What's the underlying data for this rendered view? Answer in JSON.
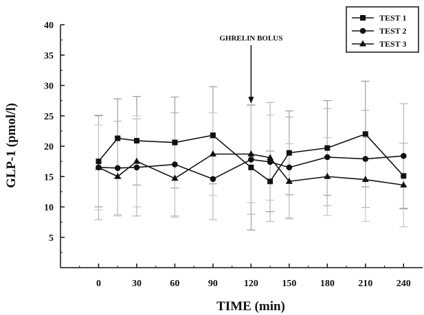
{
  "chart_data": {
    "type": "line",
    "xlabel": "TIME (min)",
    "ylabel": "GLP-1 (pmol/l)",
    "xlim": [
      -30,
      255
    ],
    "ylim": [
      0,
      40
    ],
    "xticks": [
      0,
      30,
      60,
      90,
      120,
      150,
      180,
      210,
      240
    ],
    "yticks": [
      5,
      10,
      15,
      20,
      25,
      30,
      35,
      40
    ],
    "grid": false,
    "legend_position": "top-right",
    "annotation": {
      "text": "GHRELIN BOLUS",
      "x": 120,
      "arrow_to_y": 27
    },
    "series": [
      {
        "name": "TEST 1",
        "marker": "square",
        "x": [
          0,
          15,
          30,
          60,
          90,
          120,
          135,
          150,
          180,
          210,
          240
        ],
        "values": [
          17.5,
          21.3,
          20.9,
          20.6,
          21.8,
          16.5,
          14.2,
          18.9,
          19.7,
          22.0,
          15.1
        ],
        "errors": [
          7.5,
          6.5,
          7.3,
          7.5,
          8.0,
          10.3,
          5.0,
          6.9,
          7.8,
          8.7,
          5.4
        ]
      },
      {
        "name": "TEST 2",
        "marker": "circle",
        "x": [
          0,
          15,
          30,
          60,
          90,
          120,
          135,
          150,
          180,
          210,
          240
        ],
        "values": [
          16.5,
          16.4,
          16.5,
          17.0,
          14.6,
          17.8,
          17.4,
          16.5,
          18.2,
          17.9,
          18.4
        ],
        "errors": [
          8.6,
          7.7,
          8.0,
          8.5,
          6.7,
          9.0,
          9.8,
          8.3,
          8.0,
          8.0,
          8.6
        ]
      },
      {
        "name": "TEST 3",
        "marker": "triangle",
        "x": [
          0,
          15,
          30,
          60,
          90,
          120,
          135,
          150,
          180,
          210,
          240
        ],
        "values": [
          16.5,
          15.0,
          17.5,
          14.7,
          18.7,
          18.7,
          18.1,
          14.2,
          15.0,
          14.5,
          13.6
        ],
        "errors": [
          7.0,
          6.5,
          7.5,
          6.4,
          6.8,
          8.0,
          7.0,
          6.2,
          6.4,
          6.9,
          6.9
        ]
      }
    ]
  }
}
